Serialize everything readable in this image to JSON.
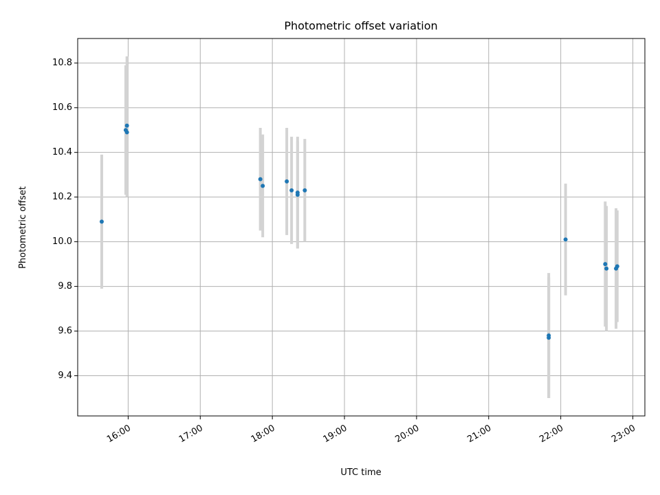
{
  "chart_data": {
    "type": "scatter",
    "title": "Photometric offset variation",
    "xlabel": "UTC time",
    "ylabel": "Photometric offset",
    "x_ticks": [
      "16:00",
      "17:00",
      "18:00",
      "19:00",
      "20:00",
      "21:00",
      "22:00",
      "23:00"
    ],
    "y_ticks": [
      "9.4",
      "9.6",
      "9.8",
      "10.0",
      "10.2",
      "10.4",
      "10.6",
      "10.8"
    ],
    "xlim": [
      "15:18",
      "23:10"
    ],
    "ylim": [
      9.22,
      10.91
    ],
    "grid": true,
    "colors": {
      "point": "#1f77b4",
      "errorbar": "#d3d3d3",
      "grid": "#b0b0b0"
    },
    "points": [
      {
        "t": "15:38",
        "y": 10.09,
        "err": 0.3
      },
      {
        "t": "15:58",
        "y": 10.5,
        "err": 0.29
      },
      {
        "t": "15:59",
        "y": 10.49,
        "err": 0.29
      },
      {
        "t": "15:59",
        "y": 10.52,
        "err": 0.31
      },
      {
        "t": "17:50",
        "y": 10.28,
        "err": 0.23
      },
      {
        "t": "17:52",
        "y": 10.25,
        "err": 0.23
      },
      {
        "t": "18:12",
        "y": 10.27,
        "err": 0.24
      },
      {
        "t": "18:16",
        "y": 10.23,
        "err": 0.24
      },
      {
        "t": "18:21",
        "y": 10.21,
        "err": 0.24
      },
      {
        "t": "18:21",
        "y": 10.22,
        "err": 0.25
      },
      {
        "t": "18:27",
        "y": 10.23,
        "err": 0.23
      },
      {
        "t": "21:50",
        "y": 9.57,
        "err": 0.27
      },
      {
        "t": "21:50",
        "y": 9.58,
        "err": 0.28
      },
      {
        "t": "22:04",
        "y": 10.01,
        "err": 0.25
      },
      {
        "t": "22:37",
        "y": 9.9,
        "err": 0.28
      },
      {
        "t": "22:38",
        "y": 9.88,
        "err": 0.28
      },
      {
        "t": "22:46",
        "y": 9.88,
        "err": 0.27
      },
      {
        "t": "22:47",
        "y": 9.89,
        "err": 0.25
      }
    ]
  }
}
